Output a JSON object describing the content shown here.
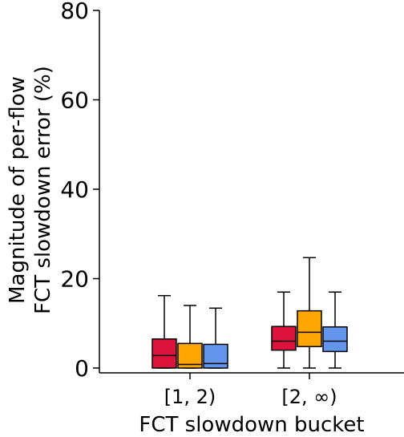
{
  "chart_data": {
    "type": "box",
    "title": "",
    "xlabel": "FCT slowdown bucket",
    "ylabel_lines": [
      "Magnitude of per-flow",
      "FCT slowdown error (%)"
    ],
    "ylim": [
      0,
      80
    ],
    "yticks": [
      0,
      20,
      40,
      60,
      80
    ],
    "grid": false,
    "categories": [
      "[1, 2)",
      "[2, ∞)"
    ],
    "series": [
      {
        "color": "#dc143c",
        "boxes": [
          {
            "whisker_low": 0.0,
            "q1": 0.0,
            "median": 2.8,
            "q3": 6.5,
            "whisker_high": 16.2
          },
          {
            "whisker_low": 0.0,
            "q1": 4.0,
            "median": 6.0,
            "q3": 9.3,
            "whisker_high": 17.0
          }
        ]
      },
      {
        "color": "#ffa500",
        "boxes": [
          {
            "whisker_low": 0.0,
            "q1": 0.0,
            "median": 0.8,
            "q3": 5.5,
            "whisker_high": 14.0
          },
          {
            "whisker_low": 0.0,
            "q1": 4.8,
            "median": 8.0,
            "q3": 12.8,
            "whisker_high": 24.7
          }
        ]
      },
      {
        "color": "#6495ed",
        "boxes": [
          {
            "whisker_low": 0.0,
            "q1": 0.0,
            "median": 1.0,
            "q3": 5.3,
            "whisker_high": 13.4
          },
          {
            "whisker_low": 0.0,
            "q1": 3.7,
            "median": 6.0,
            "q3": 9.2,
            "whisker_high": 17.0
          }
        ]
      }
    ]
  }
}
